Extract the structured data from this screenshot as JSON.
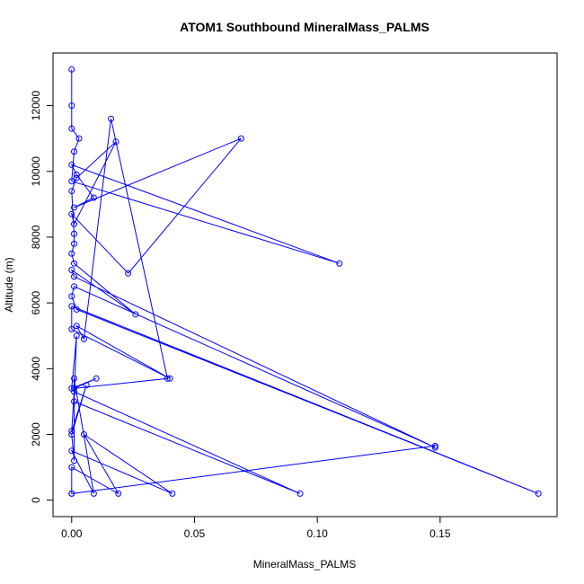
{
  "chart_data": {
    "type": "line",
    "title": "ATOM1 Southbound MineralMass_PALMS",
    "xlabel": "MineralMass_PALMS",
    "ylabel": "Altitude (m)",
    "xlim": [
      -0.0076,
      0.1976
    ],
    "ylim": [
      -500,
      13600
    ],
    "xticks": [
      0.0,
      0.05,
      0.1,
      0.15
    ],
    "xtick_labels": [
      "0.00",
      "0.05",
      "0.10",
      "0.15"
    ],
    "yticks": [
      0,
      2000,
      4000,
      6000,
      8000,
      10000,
      12000
    ],
    "ytick_labels": [
      "0",
      "2000",
      "4000",
      "6000",
      "8000",
      "10000",
      "12000"
    ],
    "grid": false,
    "legend": "none",
    "color": "#0000ff",
    "series": [
      {
        "x": [
          0.0,
          0.0,
          0.0,
          0.003,
          0.001,
          0.0,
          0.109,
          0.0,
          0.002,
          0.009,
          0.001,
          0.069,
          0.023,
          0.0,
          0.001,
          0.018,
          0.002,
          0.0,
          0.001,
          0.001,
          0.0,
          0.001,
          0.026,
          0.0,
          0.001,
          0.148,
          0.001,
          0.0,
          0.002,
          0.19,
          0.0,
          0.0,
          0.04,
          0.002,
          0.005,
          0.016,
          0.039,
          0.001,
          0.01,
          0.0,
          0.002,
          0.001,
          0.093,
          0.001,
          0.0,
          0.006,
          0.0,
          0.001,
          0.001,
          0.009,
          0.0,
          0.041,
          0.005,
          0.019,
          0.0,
          0.0,
          0.148,
          0.0
        ],
        "y": [
          13100,
          12000,
          11300,
          11000,
          10600,
          9700,
          7200,
          10200,
          9900,
          9200,
          8900,
          11000,
          6900,
          8700,
          8400,
          10900,
          9800,
          9400,
          8100,
          7800,
          7500,
          7200,
          5650,
          7000,
          6800,
          1600,
          6500,
          6200,
          5800,
          200,
          5900,
          5200,
          3700,
          5300,
          4900,
          11600,
          3700,
          3400,
          3700,
          3400,
          5000,
          3000,
          200,
          3300,
          2100,
          3500,
          2000,
          1200,
          3700,
          200,
          1500,
          200,
          2000,
          200,
          1000,
          200,
          1650,
          200
        ]
      }
    ]
  }
}
